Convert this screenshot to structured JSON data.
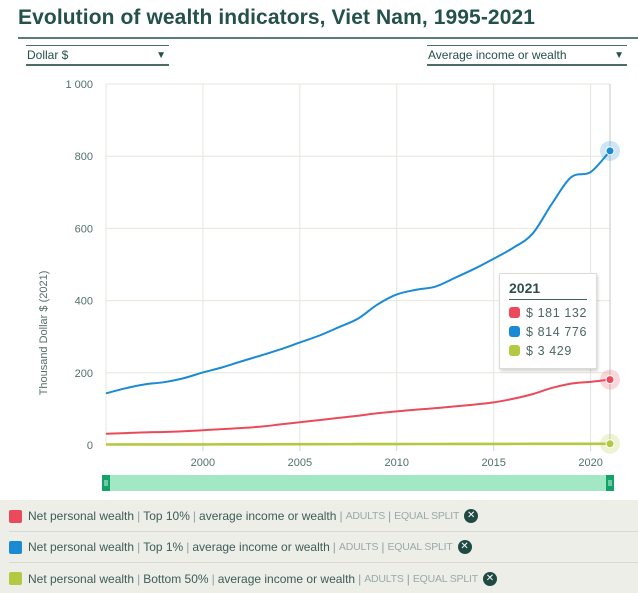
{
  "header": {
    "title": "Evolution of wealth indicators, Viet Nam, 1995-2021"
  },
  "controls": {
    "unit_dropdown": {
      "selected": "Dollar $",
      "icon": "triangle-down-icon"
    },
    "measure_dropdown": {
      "selected": "Average income or wealth",
      "icon": "triangle-down-icon"
    }
  },
  "tooltip": {
    "year": "2021",
    "rows": [
      {
        "color": "#ea4a5a",
        "value": "$ 181 132"
      },
      {
        "color": "#1a8ad4",
        "value": "$ 814 776"
      },
      {
        "color": "#b4c842",
        "value": "$ 3 429"
      }
    ]
  },
  "range_slider": {
    "start_year": 1995,
    "end_year": 2021,
    "handle_icon": "grip-lines-icon",
    "fill_color": "#a3e8c4"
  },
  "legend": [
    {
      "color": "#ea4a5a",
      "indicator": "Net personal wealth",
      "group": "Top 10%",
      "measure": "average income or wealth",
      "population": "ADULTS",
      "split": "EQUAL SPLIT",
      "close_icon": "close-circle-icon",
      "close_glyph": "✕"
    },
    {
      "color": "#1a8ad4",
      "indicator": "Net personal wealth",
      "group": "Top 1%",
      "measure": "average income or wealth",
      "population": "ADULTS",
      "split": "EQUAL SPLIT",
      "close_icon": "close-circle-icon",
      "close_glyph": "✕"
    },
    {
      "color": "#b4c842",
      "indicator": "Net personal wealth",
      "group": "Bottom 50%",
      "measure": "average income or wealth",
      "population": "ADULTS",
      "split": "EQUAL SPLIT",
      "close_icon": "close-circle-icon",
      "close_glyph": "✕"
    }
  ],
  "chart_data": {
    "type": "line",
    "title": "Evolution of wealth indicators, Viet Nam, 1995-2021",
    "xlabel": "",
    "ylabel": "Thousand Dollar $ (2021)",
    "xlim": [
      1995,
      2021
    ],
    "ylim": [
      0,
      1000
    ],
    "x_ticks": [
      2000,
      2005,
      2010,
      2015,
      2020
    ],
    "x_tick_labels": [
      "2000",
      "2005",
      "2010",
      "2015",
      "2020"
    ],
    "y_ticks": [
      0,
      200,
      400,
      600,
      800,
      1000
    ],
    "y_tick_labels": [
      "0",
      "200",
      "400",
      "600",
      "800",
      "1 000"
    ],
    "grid": true,
    "x": [
      1995,
      1996,
      1997,
      1998,
      1999,
      2000,
      2001,
      2002,
      2003,
      2004,
      2005,
      2006,
      2007,
      2008,
      2009,
      2010,
      2011,
      2012,
      2013,
      2014,
      2015,
      2016,
      2017,
      2018,
      2019,
      2020,
      2021
    ],
    "series": [
      {
        "name": "Net personal wealth | Top 10% | average income or wealth",
        "color": "#ea4a5a",
        "values": [
          31,
          33,
          35,
          36,
          38,
          41,
          44,
          47,
          51,
          57,
          63,
          69,
          75,
          81,
          88,
          93,
          98,
          102,
          107,
          112,
          118,
          128,
          141,
          158,
          170,
          175,
          181.132
        ]
      },
      {
        "name": "Net personal wealth | Top 1% | average income or wealth",
        "color": "#1a8ad4",
        "values": [
          143,
          157,
          168,
          174,
          185,
          201,
          215,
          232,
          248,
          265,
          284,
          303,
          326,
          350,
          389,
          417,
          430,
          439,
          463,
          488,
          516,
          546,
          585,
          668,
          742,
          756,
          814.776
        ]
      },
      {
        "name": "Net personal wealth | Bottom 50% | average income or wealth",
        "color": "#b4c842",
        "values": [
          1.4,
          1.5,
          1.5,
          1.6,
          1.6,
          1.7,
          1.8,
          1.9,
          2.0,
          2.1,
          2.2,
          2.3,
          2.4,
          2.5,
          2.6,
          2.7,
          2.8,
          2.8,
          2.9,
          3.0,
          3.0,
          3.1,
          3.2,
          3.3,
          3.3,
          3.4,
          3.429
        ]
      }
    ],
    "highlighted_x": 2021,
    "legend_position": "bottom"
  }
}
